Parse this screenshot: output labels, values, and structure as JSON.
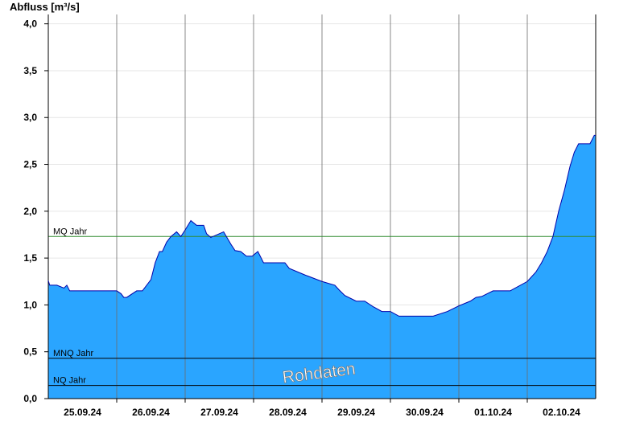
{
  "chart_data": {
    "type": "area",
    "title": "",
    "ylabel": "Abfluss [m³/s]",
    "xlabel": "",
    "ylim": [
      0,
      4.1
    ],
    "yticks": [
      0,
      0.5,
      1.0,
      1.5,
      2.0,
      2.5,
      3.0,
      3.5,
      4.0
    ],
    "ytick_labels": [
      "0,0",
      "0,5",
      "1,0",
      "1,5",
      "2,0",
      "2,5",
      "3,0",
      "3,5",
      "4,0"
    ],
    "x_start": "2024-09-25T00:00",
    "x_end": "2024-10-03T00:00",
    "x_tick_labels": [
      "25.09.24",
      "26.09.24",
      "27.09.24",
      "28.09.24",
      "29.09.24",
      "30.09.24",
      "01.10.24",
      "02.10.24"
    ],
    "grid": true,
    "fill_color": "#2aa5ff",
    "line_color": "#0000aa",
    "reference_lines": [
      {
        "label": "MQ Jahr",
        "value": 1.73,
        "color": "#2e8b2e"
      },
      {
        "label": "MNQ Jahr",
        "value": 0.43,
        "color": "#000000"
      },
      {
        "label": "NQ Jahr",
        "value": 0.14,
        "color": "#000000"
      }
    ],
    "annotation": "Rohdaten",
    "series": [
      {
        "x": [
          "2024-09-25T00:00",
          "2024-09-25T00:30",
          "2024-09-25T03:00",
          "2024-09-25T05:30",
          "2024-09-25T06:30",
          "2024-09-25T07:30",
          "2024-09-25T12:00",
          "2024-09-26T00:00",
          "2024-09-26T01:30",
          "2024-09-26T02:30",
          "2024-09-26T03:30",
          "2024-09-26T07:00",
          "2024-09-26T09:00",
          "2024-09-26T12:00",
          "2024-09-26T13:30",
          "2024-09-26T15:00",
          "2024-09-26T16:00",
          "2024-09-26T17:30",
          "2024-09-26T19:00",
          "2024-09-26T21:00",
          "2024-09-26T22:30",
          "2024-09-27T00:00",
          "2024-09-27T02:00",
          "2024-09-27T04:00",
          "2024-09-27T05:30",
          "2024-09-27T06:30",
          "2024-09-27T07:30",
          "2024-09-27T09:00",
          "2024-09-27T13:30",
          "2024-09-27T16:00",
          "2024-09-27T17:30",
          "2024-09-27T19:30",
          "2024-09-27T21:30",
          "2024-09-27T23:30",
          "2024-09-28T01:30",
          "2024-09-28T03:30",
          "2024-09-28T06:30",
          "2024-09-28T09:30",
          "2024-09-28T11:00",
          "2024-09-28T12:30",
          "2024-09-28T18:00",
          "2024-09-29T00:00",
          "2024-09-29T04:30",
          "2024-09-29T06:00",
          "2024-09-29T08:00",
          "2024-09-29T12:00",
          "2024-09-29T15:00",
          "2024-09-29T18:00",
          "2024-09-29T21:00",
          "2024-09-30T00:00",
          "2024-09-30T03:00",
          "2024-09-30T06:00",
          "2024-09-30T10:00",
          "2024-09-30T15:00",
          "2024-09-30T20:00",
          "2024-10-01T00:00",
          "2024-10-01T04:00",
          "2024-10-01T06:00",
          "2024-10-01T08:00",
          "2024-10-01T12:00",
          "2024-10-01T18:00",
          "2024-10-02T00:00",
          "2024-10-02T03:00",
          "2024-10-02T05:00",
          "2024-10-02T07:00",
          "2024-10-02T09:00",
          "2024-10-02T11:00",
          "2024-10-02T13:00",
          "2024-10-02T15:00",
          "2024-10-02T16:30",
          "2024-10-02T18:00",
          "2024-10-02T20:00",
          "2024-10-02T22:00",
          "2024-10-02T23:30"
        ],
        "values": [
          1.26,
          1.21,
          1.21,
          1.18,
          1.21,
          1.15,
          1.15,
          1.15,
          1.12,
          1.08,
          1.08,
          1.15,
          1.15,
          1.27,
          1.45,
          1.57,
          1.57,
          1.67,
          1.73,
          1.78,
          1.73,
          1.8,
          1.9,
          1.85,
          1.85,
          1.85,
          1.76,
          1.72,
          1.78,
          1.65,
          1.58,
          1.57,
          1.52,
          1.52,
          1.57,
          1.45,
          1.45,
          1.45,
          1.45,
          1.39,
          1.32,
          1.25,
          1.21,
          1.16,
          1.1,
          1.04,
          1.04,
          0.98,
          0.93,
          0.93,
          0.88,
          0.88,
          0.88,
          0.88,
          0.93,
          0.99,
          1.04,
          1.08,
          1.09,
          1.15,
          1.15,
          1.25,
          1.35,
          1.45,
          1.57,
          1.73,
          2.0,
          2.22,
          2.48,
          2.63,
          2.72,
          2.72,
          2.72,
          2.81
        ]
      }
    ]
  }
}
